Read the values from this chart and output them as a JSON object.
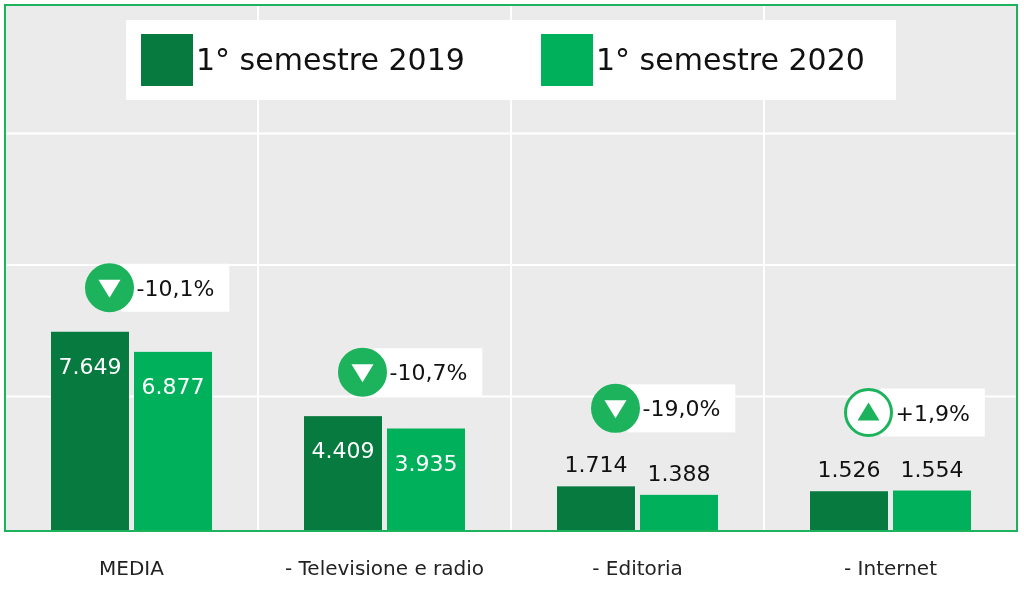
{
  "chart_data": {
    "type": "bar",
    "categories": [
      "MEDIA",
      "- Televisione e radio",
      "- Editoria",
      "- Internet"
    ],
    "series": [
      {
        "name": "1° semestre 2019",
        "color": "#067a3f",
        "values": [
          7649,
          4409,
          1714,
          1526
        ],
        "value_labels": [
          "7.649",
          "4.409",
          "1.714",
          "1.526"
        ]
      },
      {
        "name": "1° semestre 2020",
        "color": "#00b05a",
        "values": [
          6877,
          3935,
          1388,
          1554
        ],
        "value_labels": [
          "6.877",
          "3.935",
          "1.388",
          "1.554"
        ]
      }
    ],
    "tick_labels": "x",
    "grid": true,
    "legend": "top",
    "annotations": [
      "-10,1%",
      "-10,7%",
      "-19,0%",
      "+1,9%"
    ]
  }
}
